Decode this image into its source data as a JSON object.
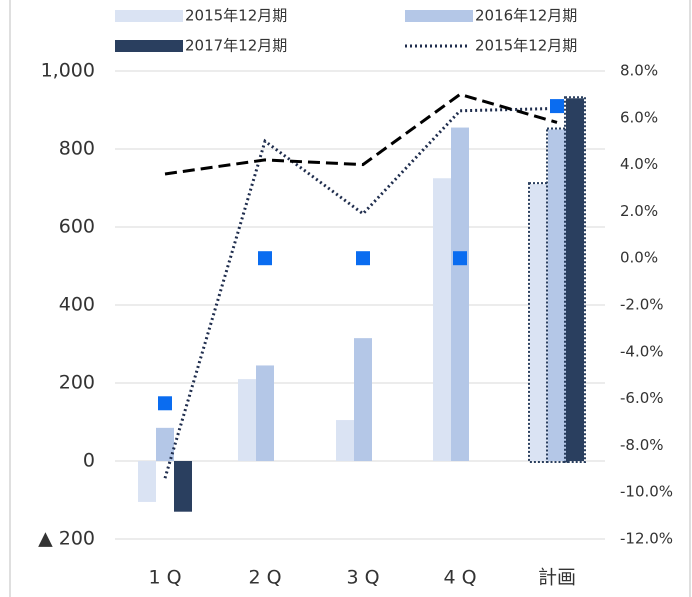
{
  "chart_data": {
    "type": "bar",
    "categories": [
      "1 Q",
      "2 Q",
      "3 Q",
      "4 Q",
      "計画"
    ],
    "series": [
      {
        "name": "2015年12月期",
        "kind": "bar",
        "color": "#dae3f3",
        "values": [
          -105,
          210,
          105,
          725,
          710
        ]
      },
      {
        "name": "2016年12月期",
        "kind": "bar",
        "color": "#b4c7e7",
        "values": [
          85,
          245,
          315,
          855,
          850
        ]
      },
      {
        "name": "2017年12月期",
        "kind": "bar",
        "color": "#2a3f5f",
        "values": [
          -130,
          null,
          null,
          null,
          930
        ]
      },
      {
        "name": "2015年12月期",
        "kind": "line",
        "style": "dotted",
        "axis": "y2",
        "color": "#1f2d4d",
        "values": [
          -9.4,
          5.0,
          1.9,
          6.3,
          6.4
        ]
      },
      {
        "kind": "line",
        "style": "dashed",
        "axis": "y2",
        "color": "#000000",
        "values": [
          3.6,
          4.2,
          4.0,
          7.0,
          5.8
        ]
      },
      {
        "kind": "scatter",
        "axis": "y2",
        "color": "#0a6cf0",
        "values": [
          -6.2,
          0.0,
          0.0,
          0.0,
          6.5
        ]
      }
    ],
    "ylim": [
      -200,
      1000
    ],
    "yticks": [
      {
        "value": -200,
        "label": "▲ 200"
      },
      0,
      200,
      400,
      600,
      800,
      {
        "value": 1000,
        "label": "1,000"
      }
    ],
    "y2lim": [
      -12,
      8
    ],
    "y2ticks": [
      {
        "value": -12,
        "label": "-12.0%"
      },
      {
        "value": -10,
        "label": "-10.0%"
      },
      {
        "value": -8,
        "label": "-8.0%"
      },
      {
        "value": -6,
        "label": "-6.0%"
      },
      {
        "value": -4,
        "label": "-4.0%"
      },
      {
        "value": -2,
        "label": "-2.0%"
      },
      {
        "value": 0,
        "label": "0.0%"
      },
      {
        "value": 2,
        "label": "2.0%"
      },
      {
        "value": 4,
        "label": "4.0%"
      },
      {
        "value": 6,
        "label": "6.0%"
      },
      {
        "value": 8,
        "label": "8.0%"
      }
    ],
    "grid": true,
    "legend": "top"
  }
}
